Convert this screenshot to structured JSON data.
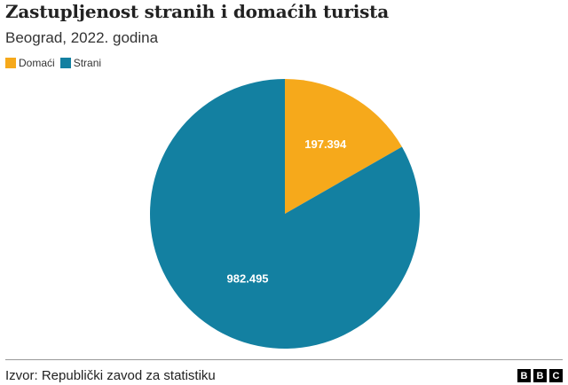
{
  "title": "Zastupljenost stranih i domaćih turista",
  "subtitle": "Beograd, 2022. godina",
  "source": "Izvor: Republički zavod za statistiku",
  "logo": "BBC",
  "chart_data": {
    "type": "pie",
    "title": "Zastupljenost stranih i domaćih turista",
    "subtitle": "Beograd, 2022. godina",
    "legend_position": "top-left",
    "series": [
      {
        "name": "Domaći",
        "value": 197394,
        "label": "197.394",
        "color": "#f6a91b"
      },
      {
        "name": "Strani",
        "value": 982495,
        "label": "982.495",
        "color": "#1380a1"
      }
    ]
  }
}
